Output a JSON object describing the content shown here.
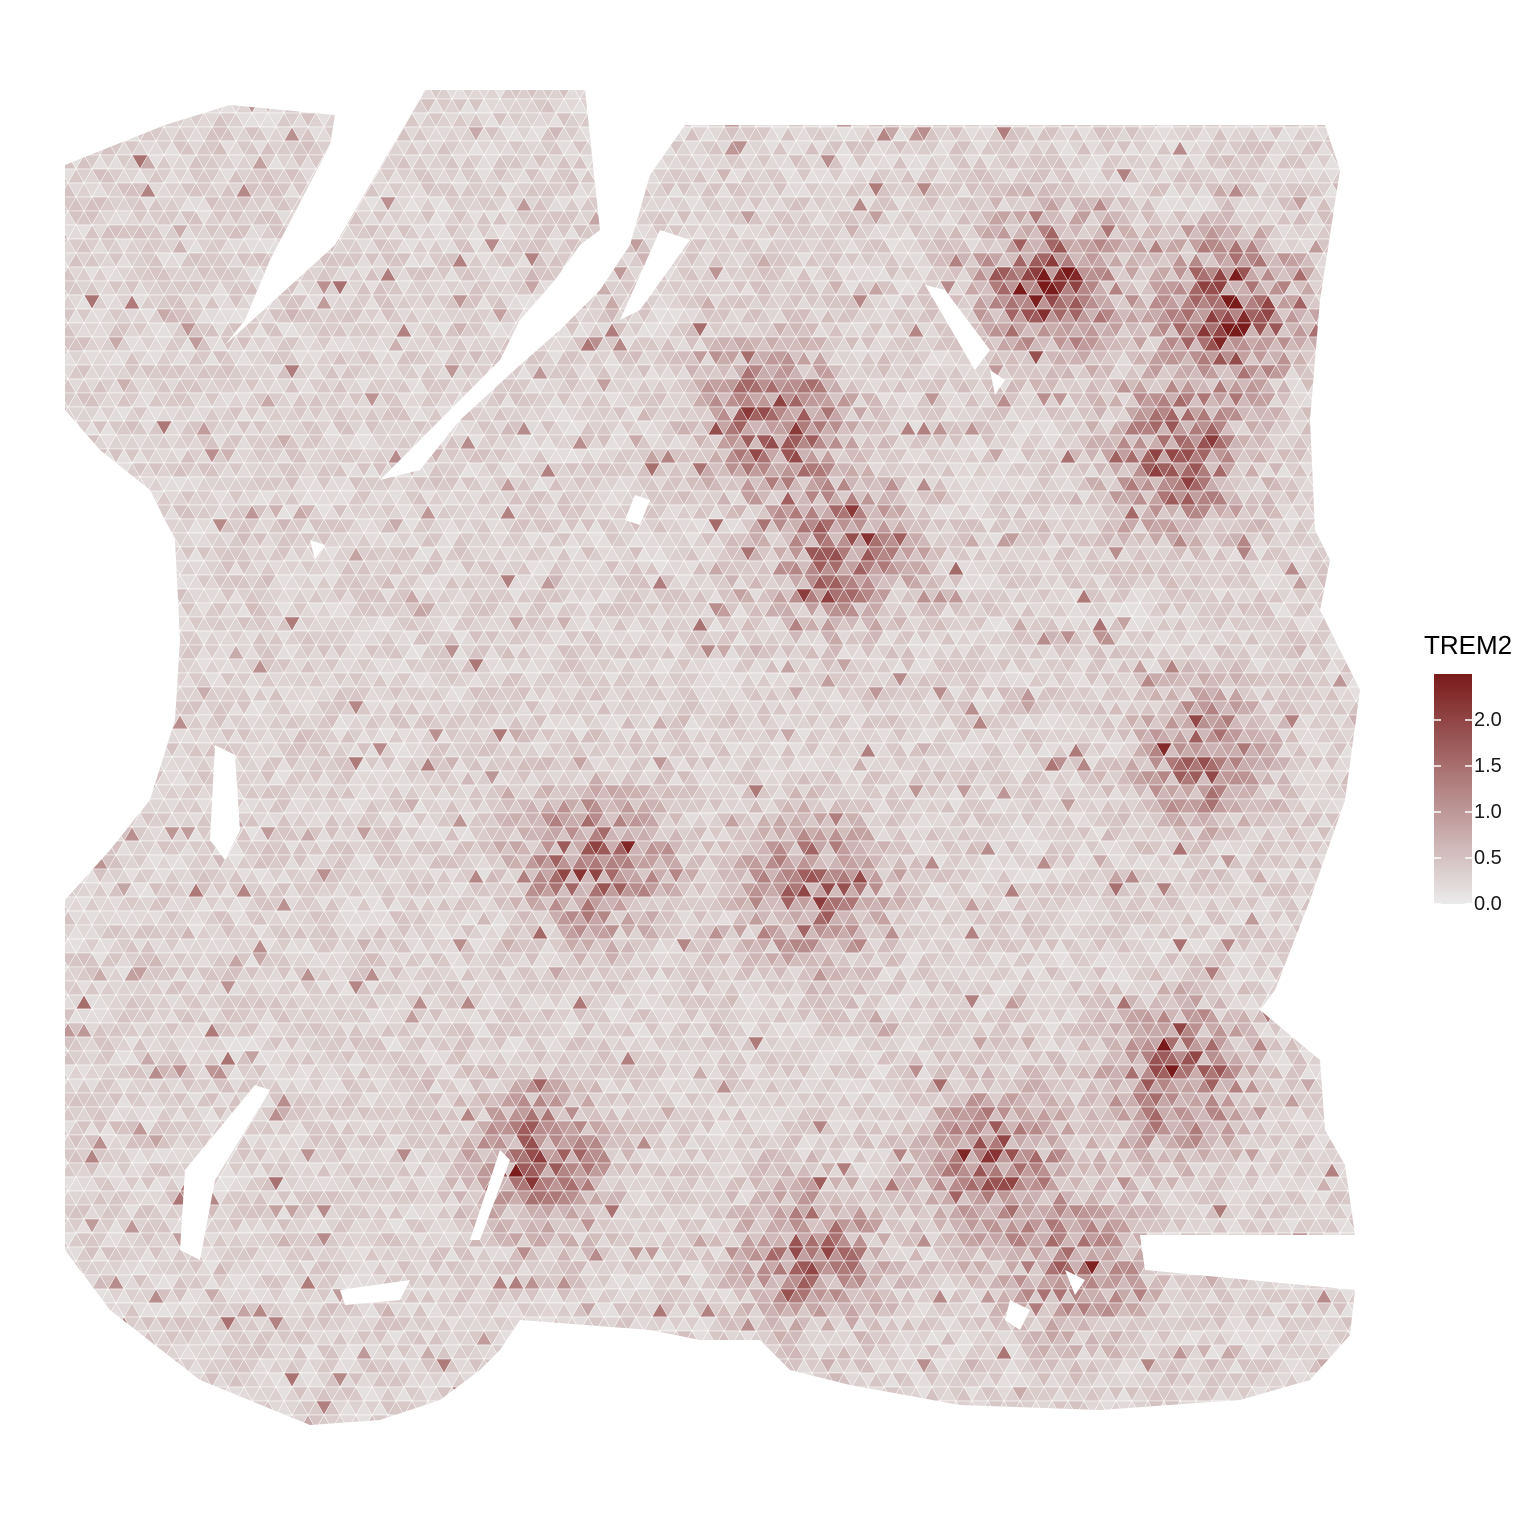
{
  "chart_data": {
    "type": "heatmap",
    "description_kind": "spatial-expression",
    "title": "",
    "xlabel": "",
    "ylabel": "",
    "grid": false,
    "legend": {
      "title": "TREM2",
      "placement": "right",
      "range": [
        0,
        2.5
      ],
      "ticks": [
        0.0,
        0.5,
        1.0,
        1.5,
        2.0
      ],
      "tick_labels": [
        "0.0",
        "0.5",
        "1.0",
        "1.5",
        "2.0"
      ],
      "colors": {
        "low": "#ebebeb",
        "high": "#7a1b1b"
      }
    },
    "baseline_level": 0.35,
    "hotspots": [
      {
        "name": "top-right-large-a",
        "cx": 0.76,
        "cy": 0.15,
        "level": 1.9
      },
      {
        "name": "top-right-large-b",
        "cx": 0.9,
        "cy": 0.17,
        "level": 2.0
      },
      {
        "name": "top-right-lower",
        "cx": 0.86,
        "cy": 0.28,
        "level": 1.6
      },
      {
        "name": "upper-center-ring",
        "cx": 0.55,
        "cy": 0.25,
        "level": 1.7
      },
      {
        "name": "upper-center-band",
        "cx": 0.6,
        "cy": 0.35,
        "level": 1.5
      },
      {
        "name": "center-loop",
        "cx": 0.41,
        "cy": 0.58,
        "level": 1.6
      },
      {
        "name": "center-diagonal",
        "cx": 0.58,
        "cy": 0.6,
        "level": 1.5
      },
      {
        "name": "right-middle",
        "cx": 0.88,
        "cy": 0.5,
        "level": 1.3
      },
      {
        "name": "lower-center-left",
        "cx": 0.37,
        "cy": 0.8,
        "level": 1.5
      },
      {
        "name": "lower-right-band",
        "cx": 0.72,
        "cy": 0.8,
        "level": 1.5
      },
      {
        "name": "lower-right-cluster",
        "cx": 0.86,
        "cy": 0.74,
        "level": 1.6
      },
      {
        "name": "bottom-center",
        "cx": 0.58,
        "cy": 0.87,
        "level": 1.4
      },
      {
        "name": "bottom-right",
        "cx": 0.78,
        "cy": 0.88,
        "level": 1.3
      }
    ]
  }
}
